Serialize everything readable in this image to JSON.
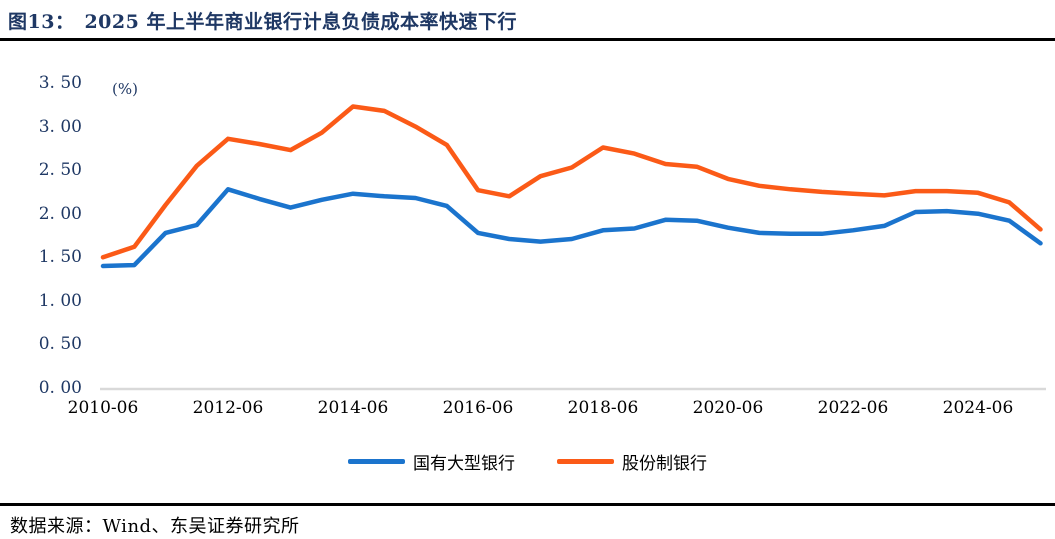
{
  "header": {
    "figure_label": "图13：",
    "title": "2025 年上半年商业银行计息负债成本率快速下行"
  },
  "footer": {
    "source_label": "数据来源：",
    "source_text": "Wind、东吴证券研究所"
  },
  "colors": {
    "title_navy": "#1f3864",
    "axis_label_navy": "#1f3864",
    "x_label_black": "#000000",
    "state_owned_blue": "#1b74cd",
    "joint_stock_orange": "#fb5a17",
    "baseline_gray": "#d9d9d9",
    "divider_black": "#000000"
  },
  "chart_data": {
    "type": "line",
    "title": "2025 年上半年商业银行计息负债成本率快速下行",
    "unit_label": "(%)",
    "xlabel": "",
    "ylabel": "(%)",
    "ylim": [
      0.0,
      3.5
    ],
    "y_tick_step": 0.5,
    "y_tick_labels": [
      "3. 50",
      "3. 00",
      "2. 50",
      "2. 00",
      "1. 50",
      "1. 00",
      "0. 50",
      "0. 00"
    ],
    "y_tick_values": [
      3.5,
      3.0,
      2.5,
      2.0,
      1.5,
      1.0,
      0.5,
      0.0
    ],
    "grid": false,
    "legend_position": "bottom-center",
    "categories": [
      "2010-06",
      "2010-12",
      "2011-06",
      "2011-12",
      "2012-06",
      "2012-12",
      "2013-06",
      "2013-12",
      "2014-06",
      "2014-12",
      "2015-06",
      "2015-12",
      "2016-06",
      "2016-12",
      "2017-06",
      "2017-12",
      "2018-06",
      "2018-12",
      "2019-06",
      "2019-12",
      "2020-06",
      "2020-12",
      "2021-06",
      "2021-12",
      "2022-06",
      "2022-12",
      "2023-06",
      "2023-12",
      "2024-06",
      "2024-12",
      "2025-06"
    ],
    "visible_x_tick_labels": [
      "2010-06",
      "2012-06",
      "2014-06",
      "2016-06",
      "2018-06",
      "2020-06",
      "2022-06",
      "2024-06"
    ],
    "visible_x_tick_indices": [
      0,
      4,
      8,
      12,
      16,
      20,
      24,
      28
    ],
    "series": [
      {
        "name": "国有大型银行",
        "color": "#1b74cd",
        "values": [
          1.4,
          1.41,
          1.78,
          1.87,
          2.28,
          2.17,
          2.07,
          2.16,
          2.23,
          2.2,
          2.18,
          2.09,
          1.78,
          1.71,
          1.68,
          1.71,
          1.81,
          1.83,
          1.93,
          1.92,
          1.84,
          1.78,
          1.77,
          1.77,
          1.81,
          1.86,
          2.02,
          2.03,
          2.0,
          1.92,
          1.66
        ]
      },
      {
        "name": "股份制银行",
        "color": "#fb5a17",
        "values": [
          1.5,
          1.62,
          2.1,
          2.55,
          2.86,
          2.8,
          2.73,
          2.93,
          3.23,
          3.18,
          3.0,
          2.79,
          2.27,
          2.2,
          2.43,
          2.53,
          2.76,
          2.69,
          2.57,
          2.54,
          2.4,
          2.32,
          2.28,
          2.25,
          2.23,
          2.21,
          2.26,
          2.26,
          2.24,
          2.13,
          1.82
        ]
      }
    ]
  }
}
